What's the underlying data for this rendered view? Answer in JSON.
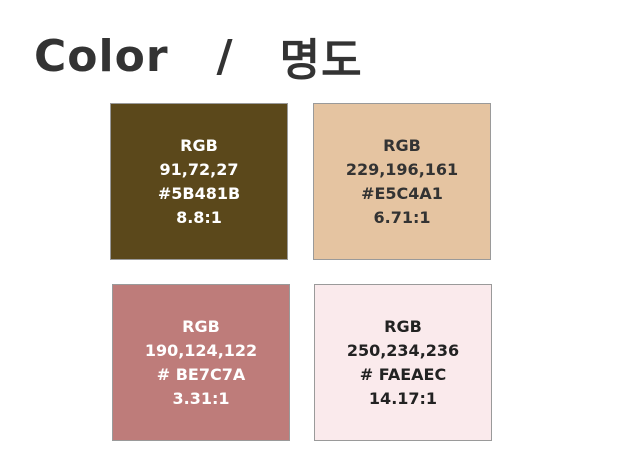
{
  "title": {
    "left": "Color",
    "separator": "/",
    "right": "명도"
  },
  "swatches": [
    {
      "label": "RGB",
      "rgb": "91,72,27",
      "hex": "#5B481B",
      "ratio": "8.8:1",
      "color": "#5B481B",
      "text_color": "#FFFFFF"
    },
    {
      "label": "RGB",
      "rgb": "229,196,161",
      "hex": "#E5C4A1",
      "ratio": "6.71:1",
      "color": "#E5C4A1",
      "text_color": "#333333"
    },
    {
      "label": "RGB",
      "rgb": "190,124,122",
      "hex": "# BE7C7A",
      "ratio": "3.31:1",
      "color": "#BE7C7A",
      "text_color": "#FFFFFF"
    },
    {
      "label": "RGB",
      "rgb": "250,234,236",
      "hex": "# FAEAEC",
      "ratio": "14.17:1",
      "color": "#FAEAEC",
      "text_color": "#222222"
    }
  ]
}
